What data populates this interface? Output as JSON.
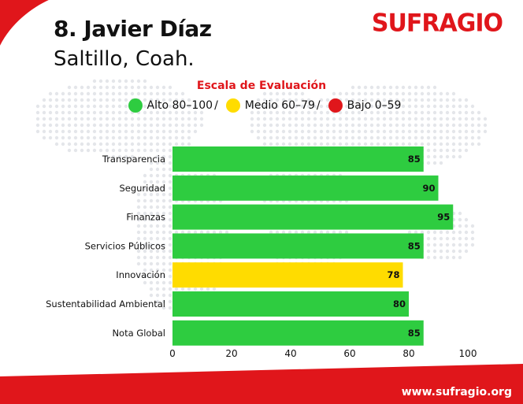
{
  "header": {
    "name": "8. Javier Díaz",
    "city": "Saltillo, Coah.",
    "logo_text": "SUFRAGIO"
  },
  "scale": {
    "title": "Escala de Evaluación",
    "items": [
      {
        "label": "Alto 80–100",
        "color": "#2ecc40"
      },
      {
        "label": "Medio 60–79",
        "color": "#ffdc00"
      },
      {
        "label": "Bajo 0–59",
        "color": "#e0161b"
      }
    ],
    "separator": "/"
  },
  "chart_data": {
    "type": "bar",
    "orientation": "horizontal",
    "categories": [
      "Transparencia",
      "Seguridad",
      "Finanzas",
      "Servicios Públicos",
      "Innovación",
      "Sustentabilidad Ambiental",
      "Nota Global"
    ],
    "values": [
      85,
      90,
      95,
      85,
      78,
      80,
      85
    ],
    "colors": [
      "#2ecc40",
      "#2ecc40",
      "#2ecc40",
      "#2ecc40",
      "#ffdc00",
      "#2ecc40",
      "#2ecc40"
    ],
    "xlim": [
      0,
      100
    ],
    "xticks": [
      0,
      20,
      40,
      60,
      80,
      100
    ],
    "data_labels": true,
    "grid": false
  },
  "footer": {
    "url": "www.sufragio.org",
    "band_color": "#e0161b"
  }
}
